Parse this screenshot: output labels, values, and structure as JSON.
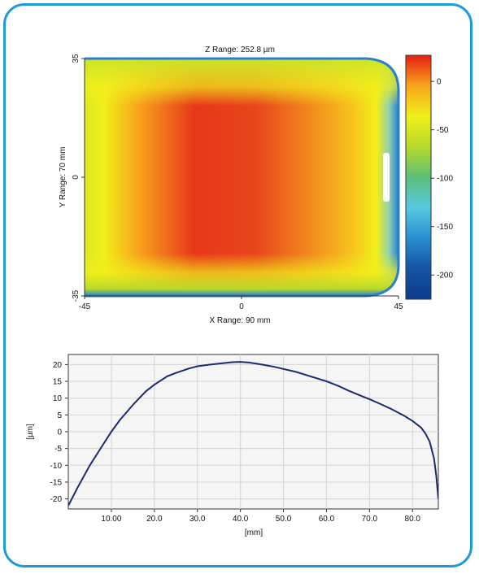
{
  "chart_data": [
    {
      "type": "heatmap",
      "title": "Z Range:  252.8 µm",
      "xlabel": "X Range: 90 mm",
      "ylabel": "Y Range: 70 mm",
      "xlim": [
        -45,
        45
      ],
      "ylim": [
        -35,
        35
      ],
      "x_ticks": [
        "-45",
        "0",
        "45"
      ],
      "y_ticks": [
        "35",
        "0",
        "-35"
      ],
      "colorbar": {
        "range": [
          -225,
          27
        ],
        "ticks": [
          "0",
          "-50",
          "-100",
          "-150",
          "-200"
        ],
        "tick_values": [
          0,
          -50,
          -100,
          -150,
          -200
        ],
        "colors": [
          "#e81e12",
          "#f7a51c",
          "#f1ef1a",
          "#b6d92b",
          "#5cbf77",
          "#56c9e3",
          "#2a8ed0",
          "#1553a4",
          "#0d3a8a"
        ]
      },
      "accent_colors": {
        "center": "#e8361a",
        "edge": "#2a7fcf"
      }
    },
    {
      "type": "line",
      "title": "",
      "xlabel": "[mm]",
      "ylabel": "[µm]",
      "xlim": [
        0,
        86
      ],
      "ylim": [
        -23,
        23
      ],
      "x_ticks": [
        "10.00",
        "20.0",
        "30.0",
        "40.0",
        "50.0",
        "60.0",
        "70.0",
        "80.0"
      ],
      "x_tick_values": [
        10,
        20,
        30,
        40,
        50,
        60,
        70,
        80
      ],
      "y_ticks": [
        "20",
        "15",
        "10",
        "5",
        "0",
        "-5",
        "-10",
        "-15",
        "-20"
      ],
      "y_tick_values": [
        20,
        15,
        10,
        5,
        0,
        -5,
        -10,
        -15,
        -20
      ],
      "grid": true,
      "line_color": "#1e2a6e",
      "series": [
        {
          "x": [
            0,
            2,
            5,
            8,
            10,
            12,
            15,
            18,
            20,
            23,
            25,
            28,
            30,
            33,
            35,
            38,
            40,
            42,
            45,
            48,
            50,
            53,
            55,
            58,
            60,
            63,
            65,
            68,
            70,
            73,
            75,
            78,
            80,
            82,
            83,
            84,
            85,
            85.5,
            86
          ],
          "values": [
            -22,
            -17,
            -10,
            -4,
            0,
            3.5,
            8,
            12,
            14,
            16.5,
            17.5,
            18.8,
            19.5,
            20,
            20.3,
            20.7,
            20.8,
            20.6,
            20,
            19.3,
            18.7,
            17.8,
            17,
            15.8,
            15,
            13.5,
            12.3,
            10.7,
            9.7,
            8,
            6.8,
            4.8,
            3.2,
            1.2,
            -0.5,
            -3,
            -8,
            -13,
            -20
          ]
        }
      ]
    }
  ]
}
